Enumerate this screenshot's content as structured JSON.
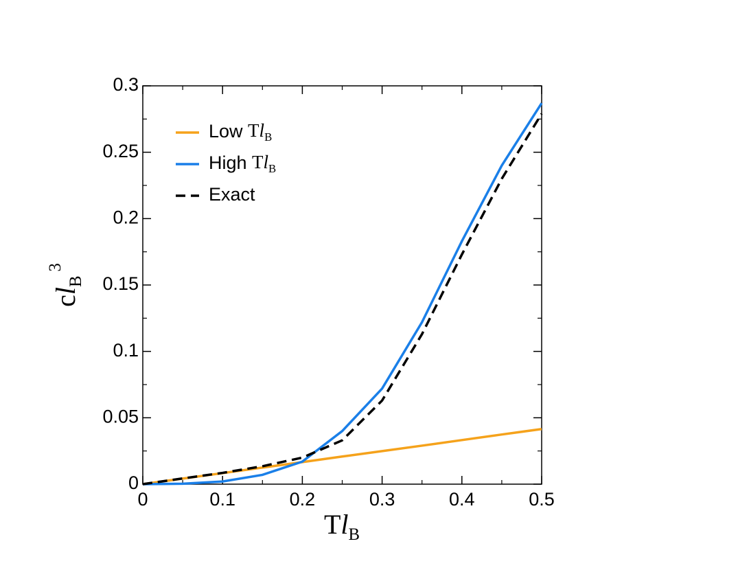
{
  "chart_data": {
    "type": "line",
    "x_label": "TlB",
    "y_label": "clB3",
    "x": [
      0,
      0.05,
      0.1,
      0.15,
      0.2,
      0.25,
      0.3,
      0.35,
      0.4,
      0.45,
      0.5
    ],
    "series": [
      {
        "name": "Low TlB",
        "color": "#f5a21b",
        "dash": false,
        "values": [
          0,
          0.0042,
          0.0083,
          0.0125,
          0.0166,
          0.0208,
          0.0249,
          0.029,
          0.0332,
          0.0374,
          0.0415
        ]
      },
      {
        "name": "High TlB",
        "color": "#1a7fe8",
        "dash": false,
        "values": [
          0,
          0.0003,
          0.002,
          0.007,
          0.017,
          0.04,
          0.072,
          0.122,
          0.183,
          0.24,
          0.287
        ]
      },
      {
        "name": "Exact",
        "color": "#000000",
        "dash": true,
        "values": [
          0,
          0.0043,
          0.0085,
          0.0135,
          0.02,
          0.033,
          0.063,
          0.113,
          0.173,
          0.23,
          0.279
        ]
      }
    ],
    "xlim": [
      0,
      0.5
    ],
    "ylim": [
      0,
      0.3
    ],
    "xticks": [
      0,
      0.1,
      0.2,
      0.3,
      0.4,
      0.5
    ],
    "yticks": [
      0,
      0.05,
      0.1,
      0.15,
      0.2,
      0.25,
      0.3
    ],
    "legend": "upper-left"
  }
}
